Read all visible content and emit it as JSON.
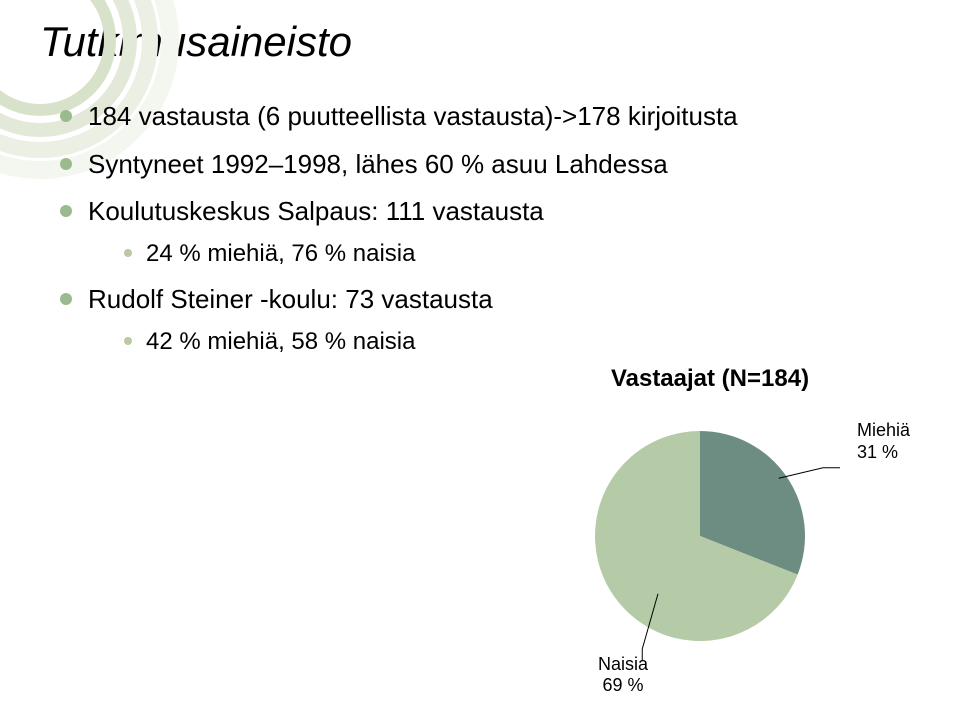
{
  "title": "Tutkimusaineisto",
  "bullets": {
    "b1": "184 vastausta (6 puutteellista vastausta)->178 kirjoitusta",
    "b2": "Syntyneet 1992–1998, lähes 60 % asuu Lahdessa",
    "b3": "Koulutuskeskus Salpaus: 111 vastausta",
    "b3_sub": "24 % miehiä, 76 % naisia",
    "b4": "Rudolf Steiner -koulu: 73 vastausta",
    "b4_sub": "42 % miehiä, 58 % naisia"
  },
  "pie": {
    "type": "pie",
    "title": "Vastaajat (N=184)",
    "slices": [
      {
        "label": "Miehiä",
        "percent": 31,
        "color": "#6e8d82"
      },
      {
        "label": "Naisia",
        "percent": 69,
        "color": "#b5cba7"
      }
    ],
    "label_miehia_line1": "Miehiä",
    "label_miehia_line2": "31 %",
    "label_naisia_line1": "Naisia",
    "label_naisia_line2": "69 %",
    "diameter": 210,
    "title_fontsize": 24,
    "label_fontsize": 18
  },
  "swirl_colors": [
    "#f4f6f0",
    "#ecefe4",
    "#e3e9d8",
    "#d8e1c9"
  ]
}
